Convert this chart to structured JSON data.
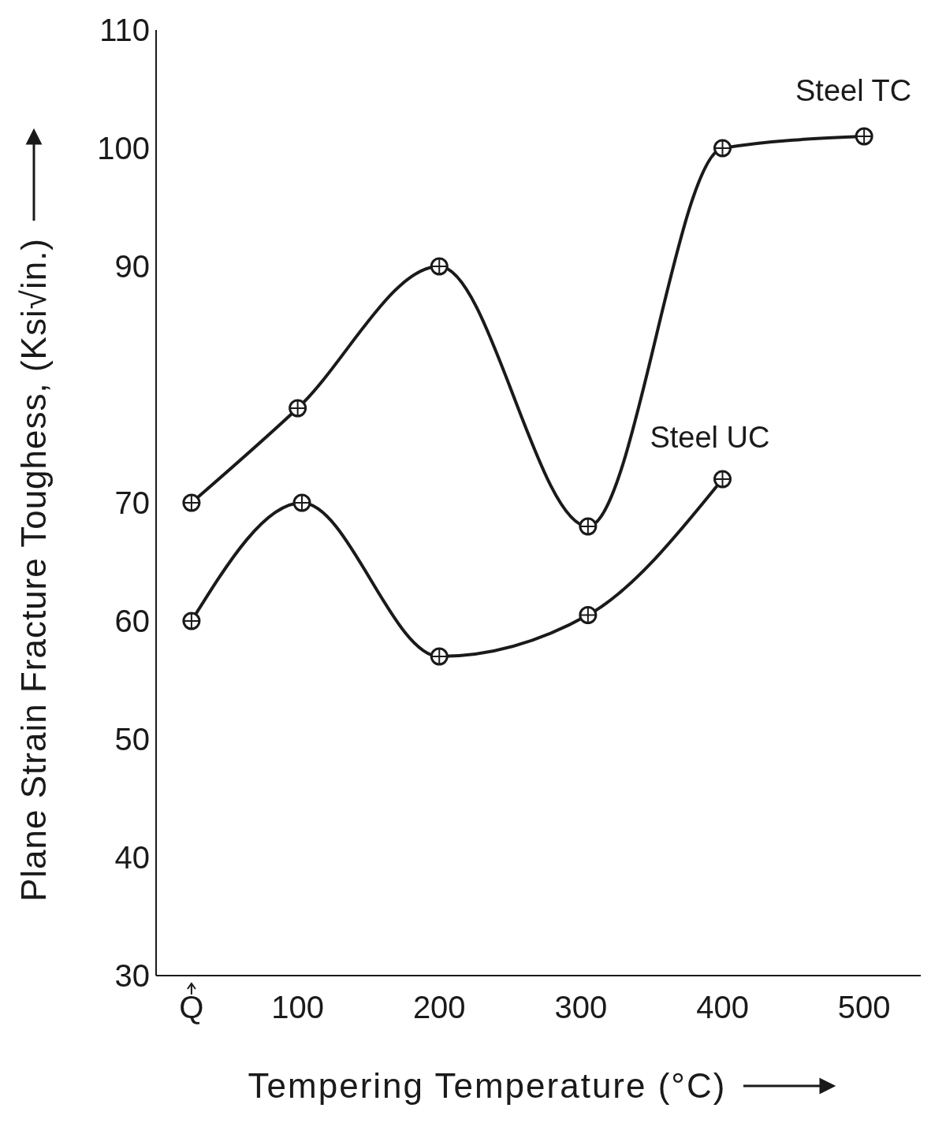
{
  "chart_data": {
    "type": "line",
    "xlabel": "Tempering Temperature (°C)",
    "ylabel": "Plane Strain Fracture Toughess, (Ksi√in.)",
    "series": [
      {
        "name": "Steel TC",
        "color": "#1a1a1a",
        "x": [
          25,
          100,
          200,
          305,
          400,
          500
        ],
        "values": [
          70,
          78,
          90,
          68,
          100,
          101
        ]
      },
      {
        "name": "Steel UC",
        "color": "#1a1a1a",
        "x": [
          25,
          103,
          200,
          305,
          400
        ],
        "values": [
          60,
          70,
          57,
          60.5,
          72
        ]
      }
    ],
    "xlim": [
      0,
      540
    ],
    "xticks": [
      {
        "value": 25,
        "label": "Q"
      },
      100,
      200,
      300,
      400,
      500
    ],
    "ylim": [
      30,
      110
    ],
    "yticks": [
      30,
      40,
      50,
      60,
      70,
      90,
      100,
      110
    ],
    "grid": false,
    "legend": false,
    "marker": "circle",
    "line_style": "solid"
  }
}
